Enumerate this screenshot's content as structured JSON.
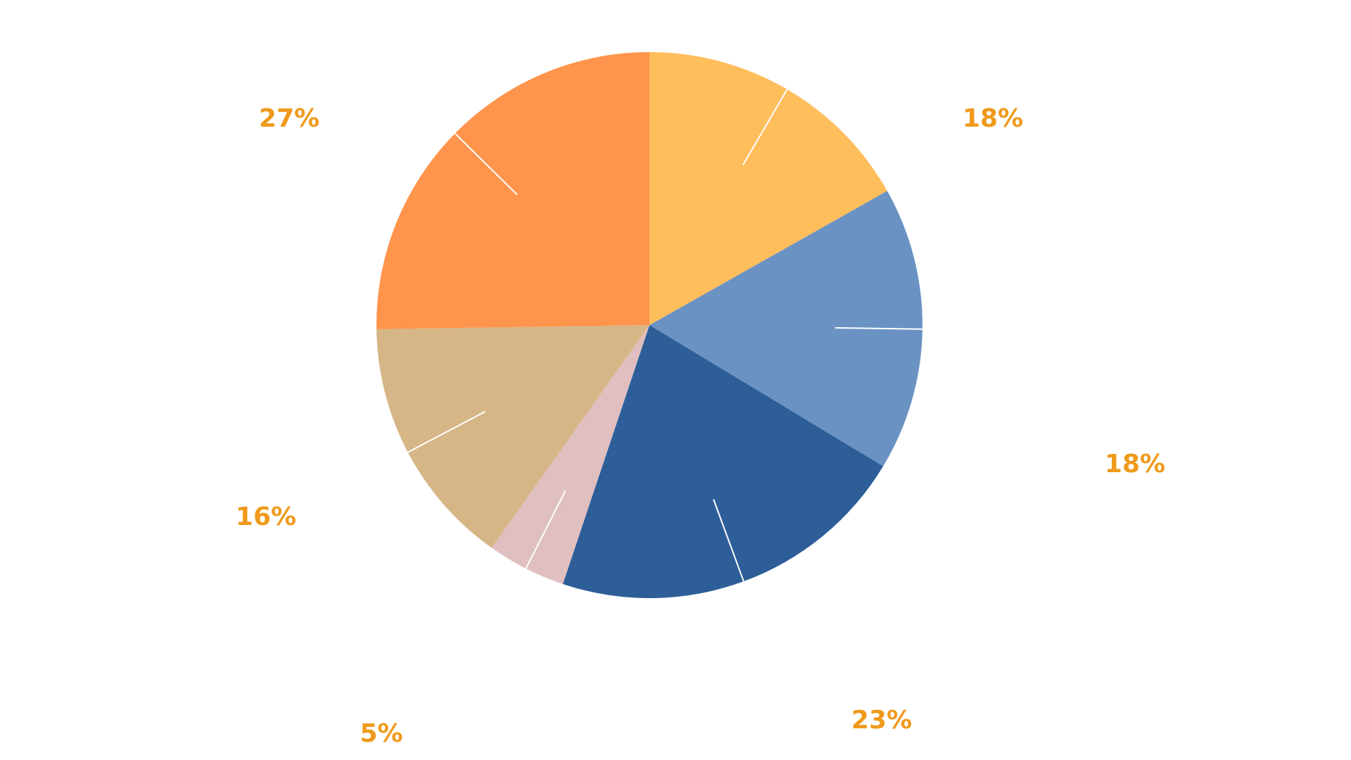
{
  "chart_data": {
    "type": "pie",
    "categories": [
      null,
      null,
      null,
      null,
      null,
      null
    ],
    "values": [
      18,
      18,
      23,
      5,
      16,
      27
    ],
    "value_labels": [
      "18%",
      "18%",
      "23%",
      "5%",
      "16%",
      "27%"
    ],
    "colors": [
      "#ffbe5c",
      "#6a93c3",
      "#2e5e98",
      "#e0bfc0",
      "#d6b686",
      "#ff944c"
    ],
    "label_color": "#ef9a1c"
  }
}
